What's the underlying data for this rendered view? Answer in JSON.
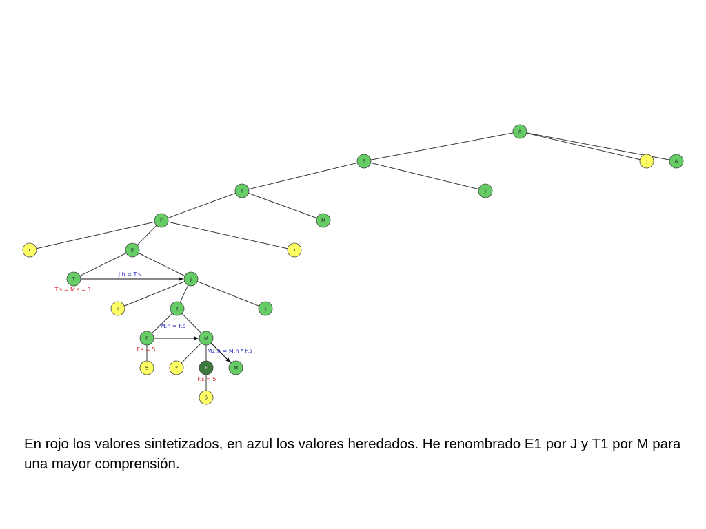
{
  "colors": {
    "terminal_fill": "#ffff66",
    "nonterminal_fill": "#66cc66",
    "highlight_fill": "#3d7a3d",
    "node_stroke": "#444444",
    "edge_stroke": "#333333",
    "synthesized_color": "#dd2222",
    "inherited_color": "#2222bb"
  },
  "tree": {
    "nodes": [
      {
        "id": "n1",
        "label": "A",
        "kind": "nonterminal"
      },
      {
        "id": "n2",
        "label": "E",
        "kind": "nonterminal"
      },
      {
        "id": "n3",
        "label": ";",
        "kind": "terminal"
      },
      {
        "id": "n4",
        "label": "A",
        "kind": "nonterminal"
      },
      {
        "id": "n5",
        "label": "T",
        "kind": "nonterminal"
      },
      {
        "id": "n6",
        "label": "J",
        "kind": "nonterminal"
      },
      {
        "id": "n7",
        "label": "F",
        "kind": "nonterminal"
      },
      {
        "id": "n8",
        "label": "M",
        "kind": "nonterminal"
      },
      {
        "id": "n9",
        "label": "(",
        "kind": "terminal"
      },
      {
        "id": "n10",
        "label": "E",
        "kind": "nonterminal"
      },
      {
        "id": "n11",
        "label": ")",
        "kind": "terminal"
      },
      {
        "id": "n12",
        "label": "T",
        "kind": "nonterminal"
      },
      {
        "id": "n13",
        "label": "J",
        "kind": "nonterminal"
      },
      {
        "id": "n14",
        "label": "+",
        "kind": "terminal"
      },
      {
        "id": "n15",
        "label": "T",
        "kind": "nonterminal"
      },
      {
        "id": "n16",
        "label": "J",
        "kind": "nonterminal"
      },
      {
        "id": "n17",
        "label": "F",
        "kind": "nonterminal"
      },
      {
        "id": "n18",
        "label": "M",
        "kind": "nonterminal"
      },
      {
        "id": "n19",
        "label": "5",
        "kind": "terminal"
      },
      {
        "id": "n20",
        "label": "*",
        "kind": "terminal"
      },
      {
        "id": "n21",
        "label": "F",
        "kind": "highlight"
      },
      {
        "id": "n22",
        "label": "M",
        "kind": "nonterminal"
      },
      {
        "id": "n23",
        "label": "5",
        "kind": "terminal"
      }
    ],
    "edges": [
      [
        "n1",
        "n2"
      ],
      [
        "n1",
        "n3"
      ],
      [
        "n1",
        "n4"
      ],
      [
        "n2",
        "n5"
      ],
      [
        "n2",
        "n6"
      ],
      [
        "n5",
        "n7"
      ],
      [
        "n5",
        "n8"
      ],
      [
        "n7",
        "n9"
      ],
      [
        "n7",
        "n10"
      ],
      [
        "n7",
        "n11"
      ],
      [
        "n10",
        "n12"
      ],
      [
        "n10",
        "n13"
      ],
      [
        "n13",
        "n14"
      ],
      [
        "n13",
        "n15"
      ],
      [
        "n13",
        "n16"
      ],
      [
        "n15",
        "n17"
      ],
      [
        "n15",
        "n18"
      ],
      [
        "n17",
        "n19"
      ],
      [
        "n18",
        "n20"
      ],
      [
        "n18",
        "n21"
      ],
      [
        "n18",
        "n22"
      ],
      [
        "n21",
        "n23"
      ]
    ],
    "arrows": [
      {
        "from": "n12",
        "to": "n13",
        "label": "J.h = T.s"
      },
      {
        "from": "n17",
        "to": "n18",
        "label": "M.h = F.s"
      },
      {
        "from": "n18",
        "to": "n22",
        "label": "M1.h = M.h * F.s"
      }
    ],
    "synthesized": [
      {
        "node": "n12",
        "label": "T.s = M.s = 1"
      },
      {
        "node": "n17",
        "label": "F.s = 5"
      },
      {
        "node": "n21",
        "label": "F.s = 5"
      }
    ]
  },
  "caption": "En rojo los valores sintetizados, en azul los valores heredados. He renombrado E1 por J y T1 por M para una mayor comprensión."
}
